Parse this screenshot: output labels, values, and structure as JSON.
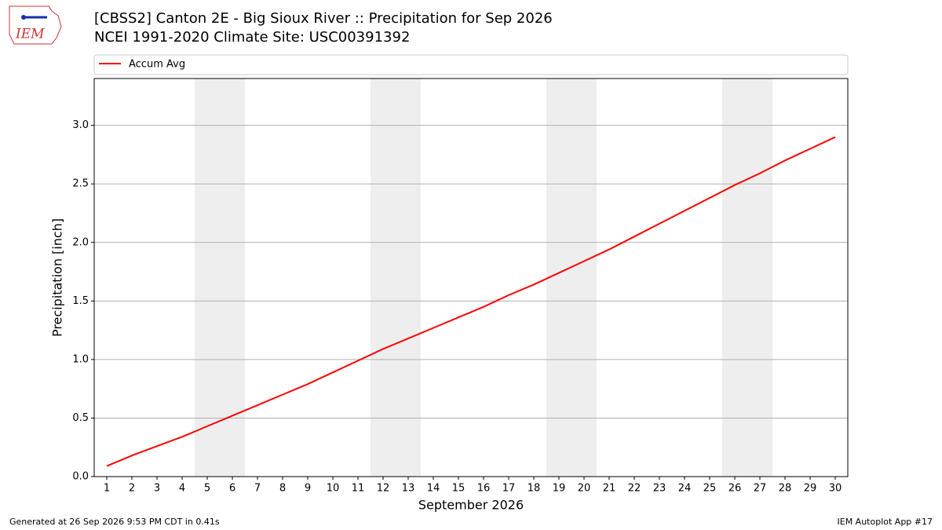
{
  "logo": "IEM",
  "footer_left": "Generated at 26 Sep 2026 9:53 PM CDT in 0.41s",
  "footer_right": "IEM Autoplot App #17",
  "chart_data": {
    "type": "line",
    "title": "[CBSS2] Canton 2E - Big Sioux River :: Precipitation for Sep 2026",
    "subtitle": "NCEI 1991-2020 Climate Site: USC00391392",
    "x_label": "September 2026",
    "y_label": "Precipitation [inch]",
    "x": [
      1,
      2,
      3,
      4,
      5,
      6,
      7,
      8,
      9,
      10,
      11,
      12,
      13,
      14,
      15,
      16,
      17,
      18,
      19,
      20,
      21,
      22,
      23,
      24,
      25,
      26,
      27,
      28,
      29,
      30
    ],
    "series": [
      {
        "name": "Accum Avg",
        "color": "#ff0000",
        "values": [
          0.09,
          0.18,
          0.26,
          0.34,
          0.43,
          0.52,
          0.61,
          0.7,
          0.79,
          0.89,
          0.99,
          1.09,
          1.18,
          1.27,
          1.36,
          1.45,
          1.55,
          1.64,
          1.74,
          1.84,
          1.94,
          2.05,
          2.16,
          2.27,
          2.38,
          2.49,
          2.59,
          2.7,
          2.8,
          2.9
        ]
      }
    ],
    "shaded_ranges": [
      [
        4.5,
        6.5
      ],
      [
        11.5,
        13.5
      ],
      [
        18.5,
        20.5
      ],
      [
        25.5,
        27.5
      ]
    ],
    "shade_color": "#eeeeee",
    "xlim": [
      0.5,
      30.5
    ],
    "xticks": [
      1,
      2,
      3,
      4,
      5,
      6,
      7,
      8,
      9,
      10,
      11,
      12,
      13,
      14,
      15,
      16,
      17,
      18,
      19,
      20,
      21,
      22,
      23,
      24,
      25,
      26,
      27,
      28,
      29,
      30
    ],
    "ylim": [
      0,
      3.4
    ],
    "yticks": [
      {
        "value": 0,
        "label": "0.0"
      },
      0.5,
      {
        "value": 1,
        "label": "1.0"
      },
      1.5,
      {
        "value": 2,
        "label": "2.0"
      },
      2.5,
      {
        "value": 3,
        "label": "3.0"
      }
    ],
    "grid": true,
    "legend": "top"
  }
}
